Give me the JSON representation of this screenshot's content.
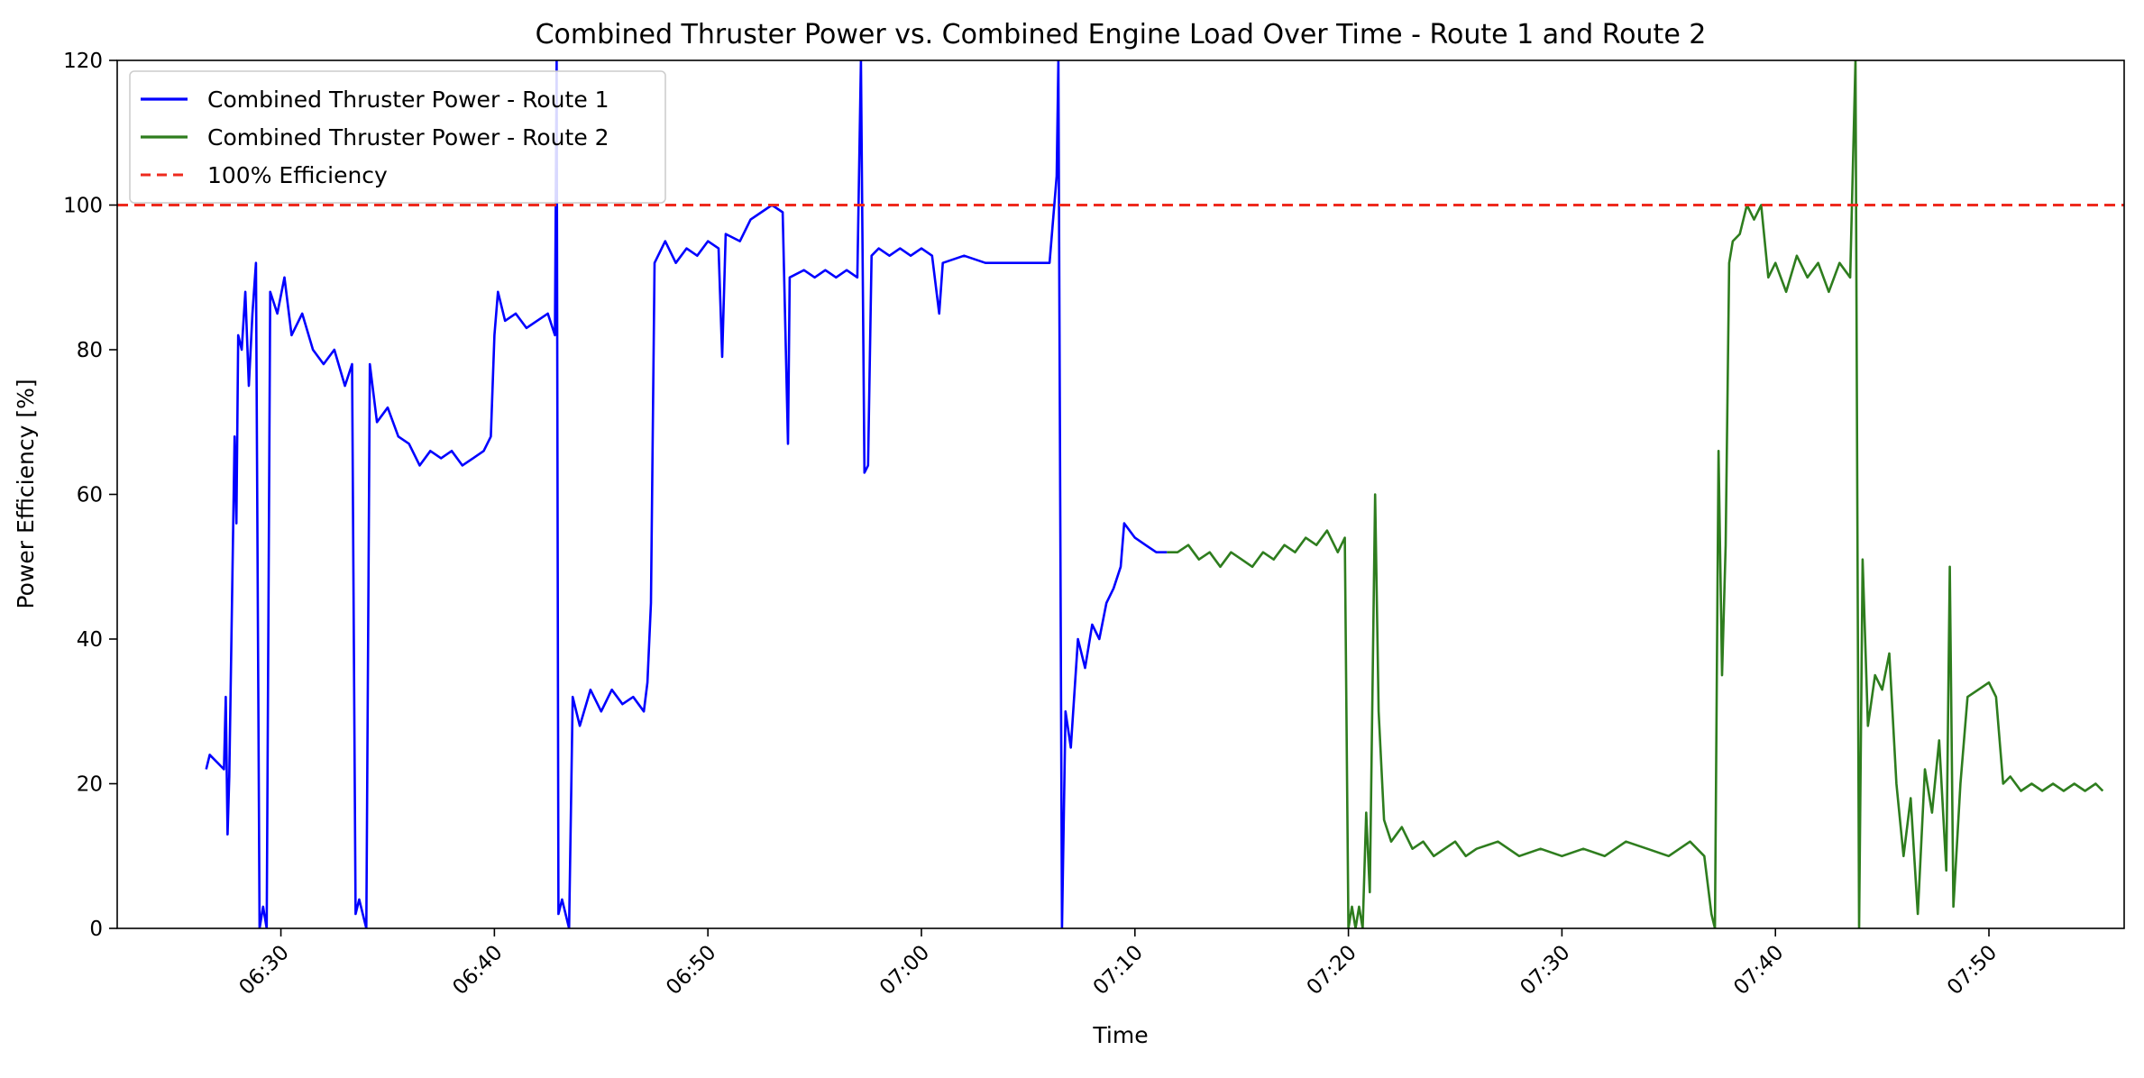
{
  "chart_data": {
    "type": "line",
    "title": "Combined Thruster Power vs. Combined Engine Load Over Time - Route 1 and Route 2",
    "xlabel": "Time",
    "ylabel": "Power Efficiency [%]",
    "xlim": [
      "06:22:20",
      "07:56:20"
    ],
    "ylim": [
      0,
      120
    ],
    "x_ticks": [
      "06:30",
      "06:40",
      "06:50",
      "07:00",
      "07:10",
      "07:20",
      "07:30",
      "07:40",
      "07:50"
    ],
    "y_ticks": [
      0,
      20,
      40,
      60,
      80,
      100,
      120
    ],
    "grid": false,
    "legend_position": "top-left",
    "series": [
      {
        "name": "Combined Thruster Power - Route 1",
        "color": "#0000ff",
        "style": "solid",
        "points": [
          [
            "06:26:30",
            22
          ],
          [
            "06:26:40",
            24
          ],
          [
            "06:27:00",
            23
          ],
          [
            "06:27:20",
            22
          ],
          [
            "06:27:25",
            32
          ],
          [
            "06:27:30",
            13
          ],
          [
            "06:27:35",
            21
          ],
          [
            "06:27:50",
            68
          ],
          [
            "06:27:55",
            56
          ],
          [
            "06:28:00",
            82
          ],
          [
            "06:28:10",
            80
          ],
          [
            "06:28:20",
            88
          ],
          [
            "06:28:30",
            75
          ],
          [
            "06:28:40",
            85
          ],
          [
            "06:28:50",
            92
          ],
          [
            "06:29:00",
            0
          ],
          [
            "06:29:10",
            3
          ],
          [
            "06:29:20",
            0
          ],
          [
            "06:29:30",
            88
          ],
          [
            "06:29:50",
            85
          ],
          [
            "06:30:10",
            90
          ],
          [
            "06:30:30",
            82
          ],
          [
            "06:31:00",
            85
          ],
          [
            "06:31:30",
            80
          ],
          [
            "06:32:00",
            78
          ],
          [
            "06:32:30",
            80
          ],
          [
            "06:33:00",
            75
          ],
          [
            "06:33:20",
            78
          ],
          [
            "06:33:30",
            2
          ],
          [
            "06:33:40",
            4
          ],
          [
            "06:34:00",
            0
          ],
          [
            "06:34:10",
            78
          ],
          [
            "06:34:30",
            70
          ],
          [
            "06:35:00",
            72
          ],
          [
            "06:35:30",
            68
          ],
          [
            "06:36:00",
            67
          ],
          [
            "06:36:30",
            64
          ],
          [
            "06:37:00",
            66
          ],
          [
            "06:37:30",
            65
          ],
          [
            "06:38:00",
            66
          ],
          [
            "06:38:30",
            64
          ],
          [
            "06:39:00",
            65
          ],
          [
            "06:39:30",
            66
          ],
          [
            "06:39:50",
            68
          ],
          [
            "06:40:00",
            82
          ],
          [
            "06:40:10",
            88
          ],
          [
            "06:40:30",
            84
          ],
          [
            "06:41:00",
            85
          ],
          [
            "06:41:30",
            83
          ],
          [
            "06:42:00",
            84
          ],
          [
            "06:42:30",
            85
          ],
          [
            "06:42:50",
            82
          ],
          [
            "06:42:55",
            120
          ],
          [
            "06:43:00",
            2
          ],
          [
            "06:43:10",
            4
          ],
          [
            "06:43:30",
            0
          ],
          [
            "06:43:40",
            32
          ],
          [
            "06:44:00",
            28
          ],
          [
            "06:44:30",
            33
          ],
          [
            "06:45:00",
            30
          ],
          [
            "06:45:30",
            33
          ],
          [
            "06:46:00",
            31
          ],
          [
            "06:46:30",
            32
          ],
          [
            "06:47:00",
            30
          ],
          [
            "06:47:10",
            34
          ],
          [
            "06:47:20",
            45
          ],
          [
            "06:47:30",
            92
          ],
          [
            "06:48:00",
            95
          ],
          [
            "06:48:30",
            92
          ],
          [
            "06:49:00",
            94
          ],
          [
            "06:49:30",
            93
          ],
          [
            "06:50:00",
            95
          ],
          [
            "06:50:30",
            94
          ],
          [
            "06:50:40",
            79
          ],
          [
            "06:50:50",
            96
          ],
          [
            "06:51:30",
            95
          ],
          [
            "06:52:00",
            98
          ],
          [
            "06:52:30",
            99
          ],
          [
            "06:53:00",
            100
          ],
          [
            "06:53:30",
            99
          ],
          [
            "06:53:45",
            67
          ],
          [
            "06:53:50",
            90
          ],
          [
            "06:54:30",
            91
          ],
          [
            "06:55:00",
            90
          ],
          [
            "06:55:30",
            91
          ],
          [
            "06:56:00",
            90
          ],
          [
            "06:56:30",
            91
          ],
          [
            "06:57:00",
            90
          ],
          [
            "06:57:10",
            120
          ],
          [
            "06:57:20",
            63
          ],
          [
            "06:57:30",
            64
          ],
          [
            "06:57:40",
            93
          ],
          [
            "06:58:00",
            94
          ],
          [
            "06:58:30",
            93
          ],
          [
            "06:59:00",
            94
          ],
          [
            "06:59:30",
            93
          ],
          [
            "07:00:00",
            94
          ],
          [
            "07:00:30",
            93
          ],
          [
            "07:00:50",
            85
          ],
          [
            "07:01:00",
            92
          ],
          [
            "07:02:00",
            93
          ],
          [
            "07:03:00",
            92
          ],
          [
            "07:04:00",
            92
          ],
          [
            "07:05:00",
            92
          ],
          [
            "07:06:00",
            92
          ],
          [
            "07:06:20",
            104
          ],
          [
            "07:06:25",
            120
          ],
          [
            "07:06:35",
            0
          ],
          [
            "07:06:45",
            30
          ],
          [
            "07:07:00",
            25
          ],
          [
            "07:07:20",
            40
          ],
          [
            "07:07:40",
            36
          ],
          [
            "07:08:00",
            42
          ],
          [
            "07:08:20",
            40
          ],
          [
            "07:08:40",
            45
          ],
          [
            "07:09:00",
            47
          ],
          [
            "07:09:20",
            50
          ],
          [
            "07:09:30",
            56
          ],
          [
            "07:10:00",
            54
          ],
          [
            "07:10:30",
            53
          ],
          [
            "07:11:00",
            52
          ],
          [
            "07:11:30",
            52
          ]
        ]
      },
      {
        "name": "Combined Thruster Power - Route 2",
        "color": "#2e7d1e",
        "style": "solid",
        "points": [
          [
            "07:11:30",
            52
          ],
          [
            "07:12:00",
            52
          ],
          [
            "07:12:30",
            53
          ],
          [
            "07:13:00",
            51
          ],
          [
            "07:13:30",
            52
          ],
          [
            "07:14:00",
            50
          ],
          [
            "07:14:30",
            52
          ],
          [
            "07:15:00",
            51
          ],
          [
            "07:15:30",
            50
          ],
          [
            "07:16:00",
            52
          ],
          [
            "07:16:30",
            51
          ],
          [
            "07:17:00",
            53
          ],
          [
            "07:17:30",
            52
          ],
          [
            "07:18:00",
            54
          ],
          [
            "07:18:30",
            53
          ],
          [
            "07:19:00",
            55
          ],
          [
            "07:19:30",
            52
          ],
          [
            "07:19:50",
            54
          ],
          [
            "07:20:00",
            0
          ],
          [
            "07:20:10",
            3
          ],
          [
            "07:20:20",
            0
          ],
          [
            "07:20:30",
            3
          ],
          [
            "07:20:40",
            0
          ],
          [
            "07:20:50",
            16
          ],
          [
            "07:21:00",
            5
          ],
          [
            "07:21:15",
            60
          ],
          [
            "07:21:25",
            30
          ],
          [
            "07:21:40",
            15
          ],
          [
            "07:22:00",
            12
          ],
          [
            "07:22:30",
            14
          ],
          [
            "07:23:00",
            11
          ],
          [
            "07:23:30",
            12
          ],
          [
            "07:24:00",
            10
          ],
          [
            "07:24:30",
            11
          ],
          [
            "07:25:00",
            12
          ],
          [
            "07:25:30",
            10
          ],
          [
            "07:26:00",
            11
          ],
          [
            "07:27:00",
            12
          ],
          [
            "07:28:00",
            10
          ],
          [
            "07:29:00",
            11
          ],
          [
            "07:30:00",
            10
          ],
          [
            "07:31:00",
            11
          ],
          [
            "07:32:00",
            10
          ],
          [
            "07:33:00",
            12
          ],
          [
            "07:34:00",
            11
          ],
          [
            "07:35:00",
            10
          ],
          [
            "07:36:00",
            12
          ],
          [
            "07:36:40",
            10
          ],
          [
            "07:37:00",
            2
          ],
          [
            "07:37:10",
            0
          ],
          [
            "07:37:20",
            66
          ],
          [
            "07:37:30",
            35
          ],
          [
            "07:37:40",
            53
          ],
          [
            "07:37:50",
            92
          ],
          [
            "07:38:00",
            95
          ],
          [
            "07:38:20",
            96
          ],
          [
            "07:38:40",
            100
          ],
          [
            "07:39:00",
            98
          ],
          [
            "07:39:20",
            100
          ],
          [
            "07:39:40",
            90
          ],
          [
            "07:40:00",
            92
          ],
          [
            "07:40:30",
            88
          ],
          [
            "07:41:00",
            93
          ],
          [
            "07:41:30",
            90
          ],
          [
            "07:42:00",
            92
          ],
          [
            "07:42:30",
            88
          ],
          [
            "07:43:00",
            92
          ],
          [
            "07:43:30",
            90
          ],
          [
            "07:43:45",
            120
          ],
          [
            "07:43:55",
            0
          ],
          [
            "07:44:05",
            51
          ],
          [
            "07:44:20",
            28
          ],
          [
            "07:44:40",
            35
          ],
          [
            "07:45:00",
            33
          ],
          [
            "07:45:20",
            38
          ],
          [
            "07:45:40",
            20
          ],
          [
            "07:46:00",
            10
          ],
          [
            "07:46:20",
            18
          ],
          [
            "07:46:40",
            2
          ],
          [
            "07:47:00",
            22
          ],
          [
            "07:47:20",
            16
          ],
          [
            "07:47:40",
            26
          ],
          [
            "07:48:00",
            8
          ],
          [
            "07:48:10",
            50
          ],
          [
            "07:48:20",
            3
          ],
          [
            "07:48:40",
            20
          ],
          [
            "07:49:00",
            32
          ],
          [
            "07:49:30",
            33
          ],
          [
            "07:50:00",
            34
          ],
          [
            "07:50:20",
            32
          ],
          [
            "07:50:40",
            20
          ],
          [
            "07:51:00",
            21
          ],
          [
            "07:51:30",
            19
          ],
          [
            "07:52:00",
            20
          ],
          [
            "07:52:30",
            19
          ],
          [
            "07:53:00",
            20
          ],
          [
            "07:53:30",
            19
          ],
          [
            "07:54:00",
            20
          ],
          [
            "07:54:30",
            19
          ],
          [
            "07:55:00",
            20
          ],
          [
            "07:55:20",
            19
          ]
        ]
      },
      {
        "name": "100% Efficiency",
        "color": "#ee2a1e",
        "style": "dashed",
        "points": [
          [
            "06:22:20",
            100
          ],
          [
            "07:56:20",
            100
          ]
        ]
      }
    ]
  }
}
